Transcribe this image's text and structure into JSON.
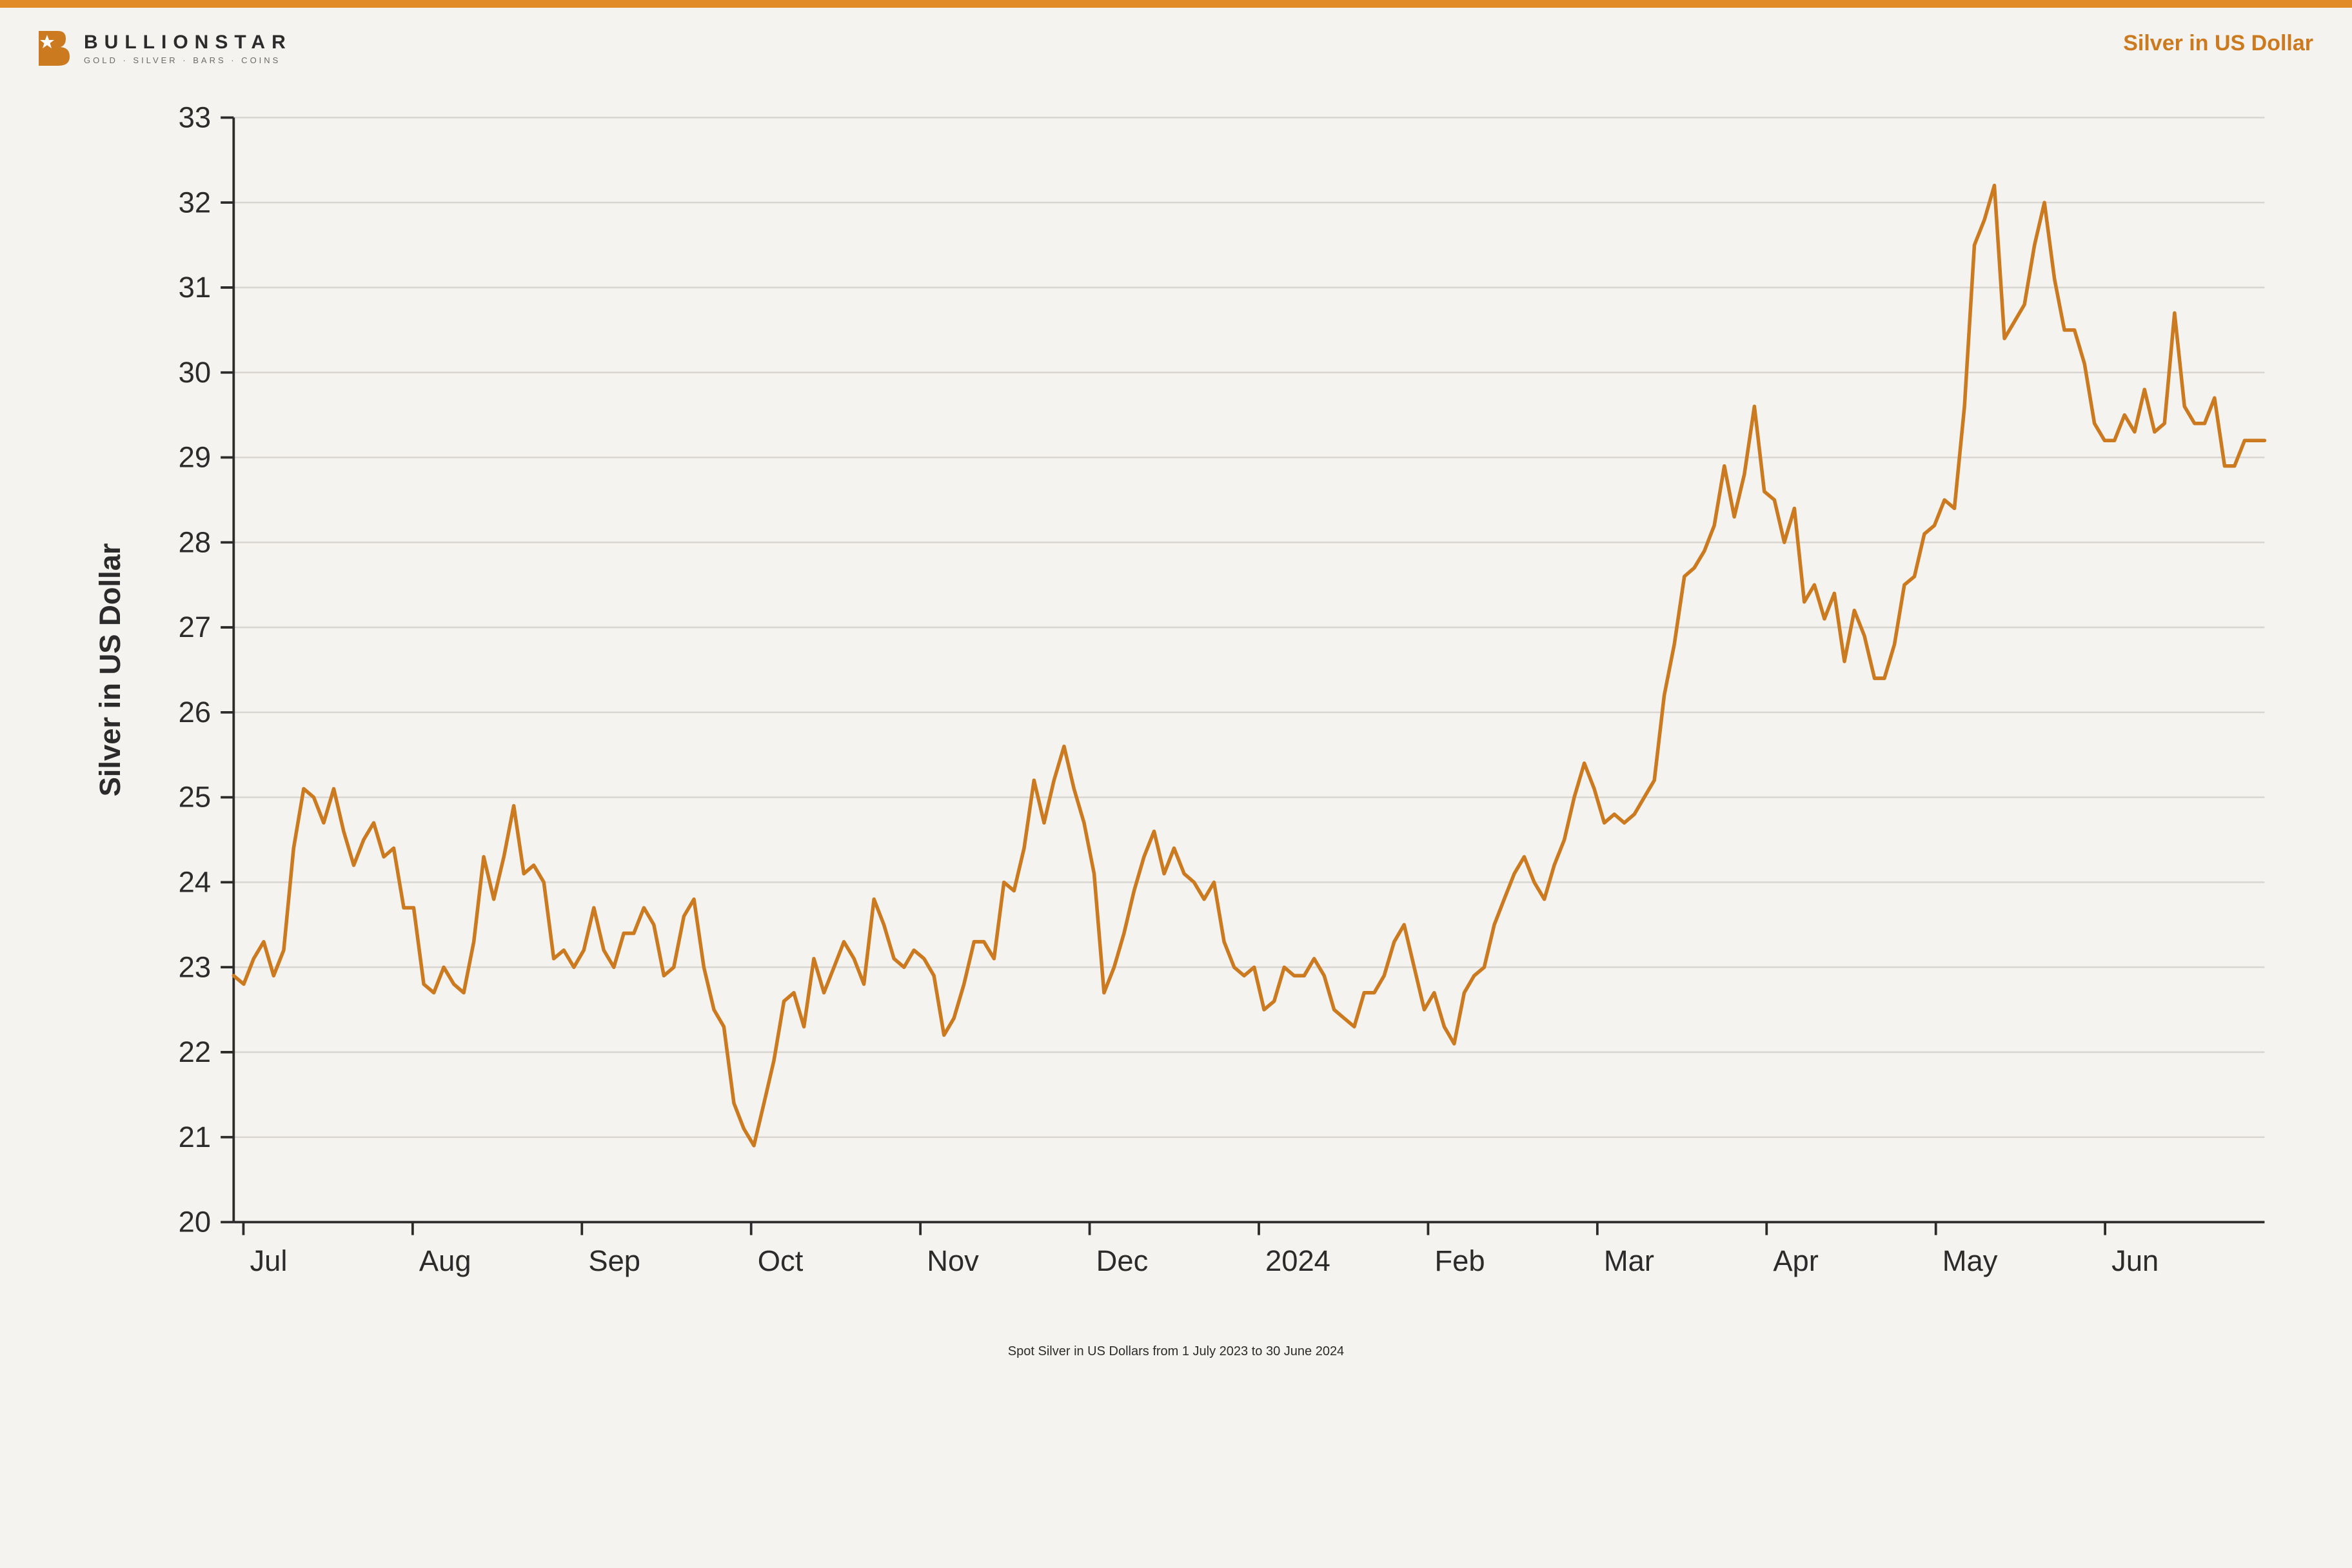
{
  "brand": {
    "accent_color": "#e08b28",
    "logo_word": "BULLIONSTAR",
    "logo_tagline": "GOLD · SILVER · BARS · COINS",
    "logo_text_color": "#2b2b2b",
    "logo_tagline_color": "#6b6b6b"
  },
  "header": {
    "chart_title": "Silver in US Dollar",
    "title_color": "#cc7a1f",
    "title_fontsize": 34
  },
  "chart": {
    "type": "line",
    "background_color": "#f5f3f0",
    "line_color": "#cc7a1f",
    "line_width": 2.2,
    "grid_color": "#d9d6d1",
    "axis_color": "#2b2b2b",
    "ylabel": "Silver in US Dollar",
    "ylim": [
      20,
      33
    ],
    "ytick_step": 1,
    "x_categories": [
      "Jul",
      "Aug",
      "Sep",
      "Oct",
      "Nov",
      "Dec",
      "2024",
      "Feb",
      "Mar",
      "Apr",
      "May",
      "Jun"
    ],
    "label_fontsize": 18,
    "axis_label_fontsize": 18,
    "values": [
      22.9,
      22.8,
      23.1,
      23.3,
      22.9,
      23.2,
      24.4,
      25.1,
      25.0,
      24.7,
      25.1,
      24.6,
      24.2,
      24.5,
      24.7,
      24.3,
      24.4,
      23.7,
      23.7,
      22.8,
      22.7,
      23.0,
      22.8,
      22.7,
      23.3,
      24.3,
      23.8,
      24.3,
      24.9,
      24.1,
      24.2,
      24.0,
      23.1,
      23.2,
      23.0,
      23.2,
      23.7,
      23.2,
      23.0,
      23.4,
      23.4,
      23.7,
      23.5,
      22.9,
      23.0,
      23.6,
      23.8,
      23.0,
      22.5,
      22.3,
      21.4,
      21.1,
      20.9,
      21.4,
      21.9,
      22.6,
      22.7,
      22.3,
      23.1,
      22.7,
      23.0,
      23.3,
      23.1,
      22.8,
      23.8,
      23.5,
      23.1,
      23.0,
      23.2,
      23.1,
      22.9,
      22.2,
      22.4,
      22.8,
      23.3,
      23.3,
      23.1,
      24.0,
      23.9,
      24.4,
      25.2,
      24.7,
      25.2,
      25.6,
      25.1,
      24.7,
      24.1,
      22.7,
      23.0,
      23.4,
      23.9,
      24.3,
      24.6,
      24.1,
      24.4,
      24.1,
      24.0,
      23.8,
      24.0,
      23.3,
      23.0,
      22.9,
      23.0,
      22.5,
      22.6,
      23.0,
      22.9,
      22.9,
      23.1,
      22.9,
      22.5,
      22.4,
      22.3,
      22.7,
      22.7,
      22.9,
      23.3,
      23.5,
      23.0,
      22.5,
      22.7,
      22.3,
      22.1,
      22.7,
      22.9,
      23.0,
      23.5,
      23.8,
      24.1,
      24.3,
      24.0,
      23.8,
      24.2,
      24.5,
      25.0,
      25.4,
      25.1,
      24.7,
      24.8,
      24.7,
      24.8,
      25.0,
      25.2,
      26.2,
      26.8,
      27.6,
      27.7,
      27.9,
      28.2,
      28.9,
      28.3,
      28.8,
      29.6,
      28.6,
      28.5,
      28.0,
      28.4,
      27.3,
      27.5,
      27.1,
      27.4,
      26.6,
      27.2,
      26.9,
      26.4,
      26.4,
      26.8,
      27.5,
      27.6,
      28.1,
      28.2,
      28.5,
      28.4,
      29.6,
      31.5,
      31.8,
      32.2,
      30.4,
      30.6,
      30.8,
      31.5,
      32.0,
      31.1,
      30.5,
      30.5,
      30.1,
      29.4,
      29.2,
      29.2,
      29.5,
      29.3,
      29.8,
      29.3,
      29.4,
      30.7,
      29.6,
      29.4,
      29.4,
      29.7,
      28.9,
      28.9,
      29.2,
      29.2,
      29.2
    ]
  },
  "caption": {
    "text": "Spot Silver in US Dollars from 1 July 2023 to 30 June 2024",
    "fontsize": 20,
    "color": "#2b2b2b"
  }
}
